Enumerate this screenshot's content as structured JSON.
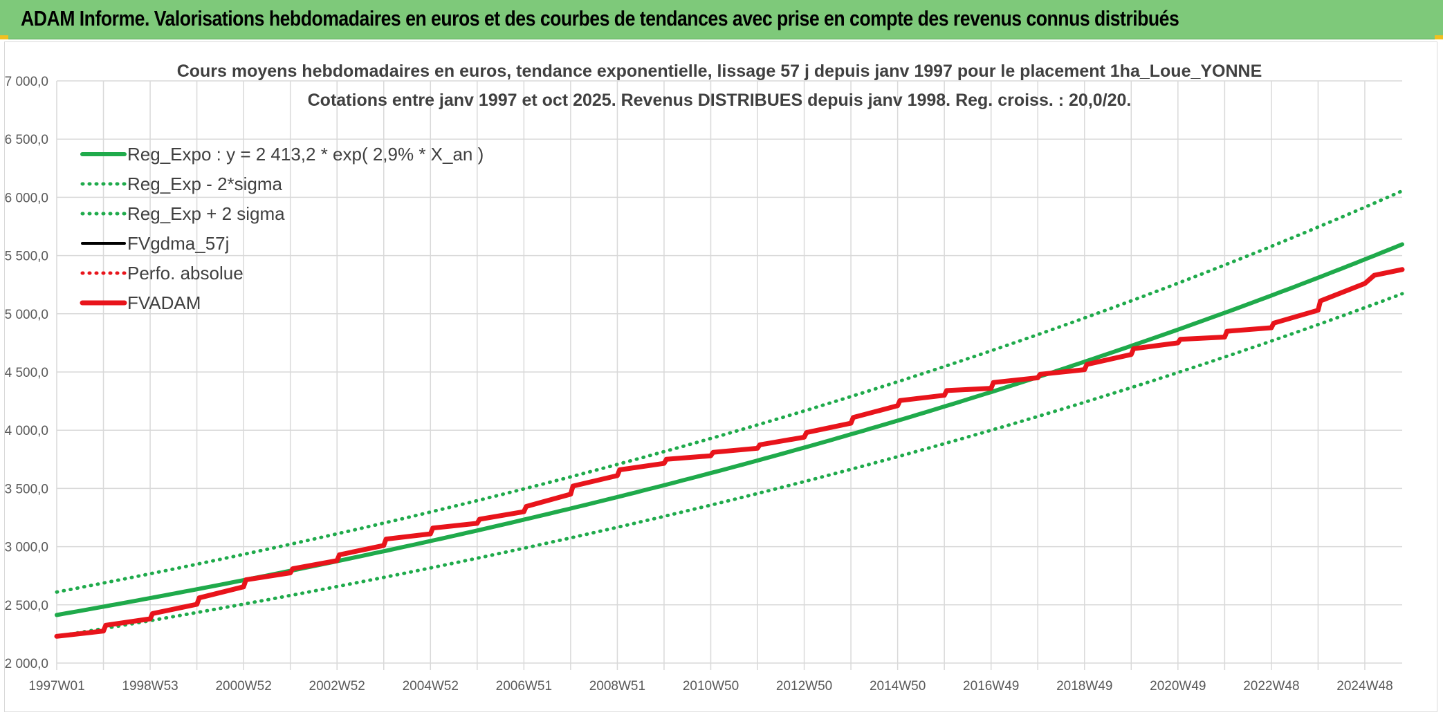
{
  "header": {
    "title": "ADAM Informe. Valorisations hebdomadaires en euros et des courbes de tendances avec prise en compte des revenus connus distribués"
  },
  "colors": {
    "header_bg": "#7ec97a",
    "trend": "#1faa4b",
    "price": "#000000",
    "adam": "#e8141b"
  },
  "chart_data": {
    "type": "line",
    "title": "Cours moyens hebdomadaires en euros, tendance exponentielle, lissage 57 j depuis janv 1997 pour le placement 1ha_Loue_YONNE",
    "subtitle": "Cotations entre janv 1997 et oct 2025. Revenus DISTRIBUES depuis janv 1998. Reg. croiss. : 20,0/20.",
    "ylim": [
      2000,
      7000
    ],
    "yticks": [
      "2 000,0",
      "2 500,0",
      "3 000,0",
      "3 500,0",
      "4 000,0",
      "4 500,0",
      "5 000,0",
      "5 500,0",
      "6 000,0",
      "6 500,0",
      "7 000,0"
    ],
    "ytick_values": [
      2000,
      2500,
      3000,
      3500,
      4000,
      4500,
      5000,
      5500,
      6000,
      6500,
      7000
    ],
    "xlim": [
      1997.0,
      2025.8
    ],
    "xticks": [
      "1997W01",
      "1998W53",
      "2000W52",
      "2002W52",
      "2004W52",
      "2006W51",
      "2008W51",
      "2010W50",
      "2012W50",
      "2014W50",
      "2016W49",
      "2018W49",
      "2020W49",
      "2022W48",
      "2024W48"
    ],
    "xtick_values": [
      1997.0,
      1999.0,
      2001.0,
      2003.0,
      2005.0,
      2007.0,
      2009.0,
      2011.0,
      2013.0,
      2015.0,
      2017.0,
      2019.0,
      2021.0,
      2023.0,
      2025.0
    ],
    "legend": {
      "position": "top-left"
    },
    "grid": true,
    "series": [
      {
        "name": "Reg_Expo : y = 2 413,2 * exp( 2,9% *  X_an )",
        "style": "solid",
        "color": "#1faa4b",
        "x": [
          1997.0,
          2001.0,
          2005.0,
          2009.0,
          2013.0,
          2017.0,
          2021.0,
          2025.8
        ],
        "y": [
          2413,
          2716,
          3058,
          3442,
          3875,
          4362,
          4910,
          5596
        ]
      },
      {
        "name": "Reg_Exp - 2*sigma",
        "style": "dotted",
        "color": "#1faa4b",
        "x": [
          1997.0,
          2001.0,
          2005.0,
          2009.0,
          2013.0,
          2017.0,
          2021.0,
          2025.8
        ],
        "y": [
          2230,
          2510,
          2826,
          3181,
          3581,
          4031,
          4538,
          5172
        ]
      },
      {
        "name": "Reg_Exp + 2 sigma",
        "style": "dotted",
        "color": "#1faa4b",
        "x": [
          1997.0,
          2001.0,
          2005.0,
          2009.0,
          2013.0,
          2017.0,
          2021.0,
          2025.8
        ],
        "y": [
          2610,
          2938,
          3308,
          3724,
          4193,
          4720,
          5313,
          6055
        ]
      },
      {
        "name": "FVgdma_57j",
        "style": "solid-thin",
        "color": "#000000",
        "x": [
          1997.0,
          1998.0,
          1998.05,
          1999.0,
          1999.05,
          2000.0,
          2000.05,
          2001.0,
          2001.05,
          2002.0,
          2002.05,
          2003.0,
          2003.05,
          2004.0,
          2004.05,
          2005.0,
          2005.05,
          2006.0,
          2006.05,
          2007.0,
          2007.05,
          2008.0,
          2008.05,
          2009.0,
          2009.05,
          2010.0,
          2010.05,
          2011.0,
          2011.05,
          2012.0,
          2012.05,
          2013.0,
          2013.05,
          2014.0,
          2014.05,
          2015.0,
          2015.05,
          2016.0,
          2016.05,
          2017.0,
          2017.05,
          2018.0,
          2018.05,
          2019.0,
          2019.05,
          2020.0,
          2020.05,
          2021.0,
          2021.05,
          2022.0,
          2022.05,
          2023.0,
          2023.05,
          2024.0,
          2024.05,
          2025.0,
          2025.2,
          2025.8
        ],
        "y": [
          2230,
          2275,
          2325,
          2380,
          2425,
          2505,
          2560,
          2655,
          2715,
          2775,
          2810,
          2880,
          2930,
          3010,
          3065,
          3110,
          3160,
          3200,
          3235,
          3300,
          3345,
          3450,
          3520,
          3610,
          3660,
          3715,
          3750,
          3780,
          3810,
          3845,
          3875,
          3940,
          3980,
          4060,
          4110,
          4210,
          4255,
          4300,
          4340,
          4360,
          4410,
          4450,
          4480,
          4520,
          4565,
          4650,
          4700,
          4750,
          4780,
          4800,
          4850,
          4880,
          4920,
          5030,
          5110,
          5260,
          5330,
          5380
        ]
      },
      {
        "name": "Perfo. absolue",
        "style": "dotted",
        "color": "#e8141b",
        "x": [
          1997.0,
          1998.0,
          1998.05,
          1999.0,
          1999.05,
          2000.0,
          2000.05,
          2001.0,
          2001.05,
          2002.0,
          2002.05,
          2003.0,
          2003.05,
          2004.0,
          2004.05,
          2005.0,
          2005.05,
          2006.0,
          2006.05,
          2007.0,
          2007.05,
          2008.0,
          2008.05,
          2009.0,
          2009.05,
          2010.0,
          2010.05,
          2011.0,
          2011.05,
          2012.0,
          2012.05,
          2013.0,
          2013.05,
          2014.0,
          2014.05,
          2015.0,
          2015.05,
          2016.0,
          2016.05,
          2017.0,
          2017.05,
          2018.0,
          2018.05,
          2019.0,
          2019.05,
          2020.0,
          2020.05,
          2021.0,
          2021.05,
          2022.0,
          2022.05,
          2023.0,
          2023.05,
          2024.0,
          2024.05,
          2025.0,
          2025.2,
          2025.8
        ],
        "y": [
          2230,
          2275,
          2325,
          2380,
          2425,
          2505,
          2560,
          2655,
          2715,
          2775,
          2810,
          2880,
          2930,
          3010,
          3065,
          3110,
          3160,
          3200,
          3235,
          3300,
          3345,
          3450,
          3520,
          3610,
          3660,
          3715,
          3750,
          3780,
          3810,
          3845,
          3875,
          3940,
          3980,
          4060,
          4110,
          4210,
          4255,
          4300,
          4340,
          4360,
          4410,
          4450,
          4480,
          4520,
          4565,
          4650,
          4700,
          4750,
          4780,
          4800,
          4850,
          4880,
          4920,
          5030,
          5110,
          5260,
          5330,
          5380
        ]
      },
      {
        "name": "FVADAM",
        "style": "solid-thick",
        "color": "#e8141b",
        "x": [
          1997.0,
          1998.0,
          1998.05,
          1999.0,
          1999.05,
          2000.0,
          2000.05,
          2001.0,
          2001.05,
          2002.0,
          2002.05,
          2003.0,
          2003.05,
          2004.0,
          2004.05,
          2005.0,
          2005.05,
          2006.0,
          2006.05,
          2007.0,
          2007.05,
          2008.0,
          2008.05,
          2009.0,
          2009.05,
          2010.0,
          2010.05,
          2011.0,
          2011.05,
          2012.0,
          2012.05,
          2013.0,
          2013.05,
          2014.0,
          2014.05,
          2015.0,
          2015.05,
          2016.0,
          2016.05,
          2017.0,
          2017.05,
          2018.0,
          2018.05,
          2019.0,
          2019.05,
          2020.0,
          2020.05,
          2021.0,
          2021.05,
          2022.0,
          2022.05,
          2023.0,
          2023.05,
          2024.0,
          2024.05,
          2025.0,
          2025.2,
          2025.8
        ],
        "y": [
          2230,
          2275,
          2325,
          2380,
          2425,
          2505,
          2560,
          2655,
          2715,
          2775,
          2810,
          2880,
          2930,
          3010,
          3065,
          3110,
          3160,
          3200,
          3235,
          3300,
          3345,
          3450,
          3520,
          3610,
          3660,
          3715,
          3750,
          3780,
          3810,
          3845,
          3875,
          3940,
          3980,
          4060,
          4110,
          4210,
          4255,
          4300,
          4340,
          4360,
          4410,
          4450,
          4480,
          4520,
          4565,
          4650,
          4700,
          4750,
          4780,
          4800,
          4850,
          4880,
          4920,
          5030,
          5110,
          5260,
          5330,
          5380
        ]
      }
    ]
  }
}
